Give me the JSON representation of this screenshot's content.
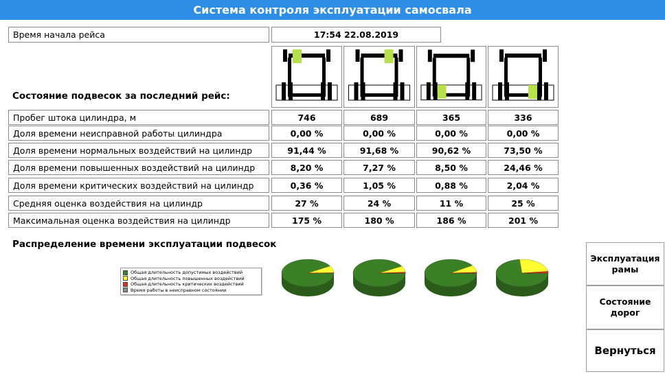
{
  "header": {
    "title": "Система контроля эксплуатации самосвала"
  },
  "trip_start": {
    "label": "Время начала рейса",
    "value": "17:54 22.08.2019"
  },
  "suspension_section_title": "Состояние подвесок за последний рейс:",
  "suspension_highlight_color": "#b8e04a",
  "suspensions": [
    {
      "position": "front-left"
    },
    {
      "position": "front-right"
    },
    {
      "position": "rear-left"
    },
    {
      "position": "rear-right"
    }
  ],
  "metrics": [
    {
      "label": "Пробег штока цилиндра, м",
      "values": [
        "746",
        "689",
        "365",
        "336"
      ]
    },
    {
      "label": "Доля времени неисправной работы цилиндра",
      "values": [
        "0,00 %",
        "0,00 %",
        "0,00 %",
        "0,00 %"
      ]
    },
    {
      "label": "Доля времени нормальных воздействий на цилиндр",
      "values": [
        "91,44 %",
        "91,68 %",
        "90,62 %",
        "73,50 %"
      ]
    },
    {
      "label": "Доля времени повышенных воздействий на цилиндр",
      "values": [
        "8,20 %",
        "7,27 %",
        "8,50 %",
        "24,46 %"
      ]
    },
    {
      "label": "Доля времени критических воздействий на цилиндр",
      "values": [
        "0,36 %",
        "1,05 %",
        "0,88 %",
        "2,04 %"
      ]
    },
    {
      "label": "Средняя оценка воздействия на цилиндр",
      "values": [
        "27 %",
        "24 %",
        "11 %",
        "25 %"
      ]
    },
    {
      "label": "Максимальная оценка воздействия на цилиндр",
      "values": [
        "175 %",
        "180 %",
        "186 %",
        "201 %"
      ]
    }
  ],
  "distribution_title": "Распределение времени эксплуатации подвесок",
  "chart_data": {
    "type": "pie",
    "legend_position": "left",
    "legend": [
      {
        "name": "Общая длительность допустимых воздействий",
        "color": "#3b7f26"
      },
      {
        "name": "Общая длительность повышенных воздействий",
        "color": "#ffff33"
      },
      {
        "name": "Общая длительность критических воздействий",
        "color": "#e03020"
      },
      {
        "name": "Время работы в неисправном состоянии",
        "color": "#8c8c8c"
      }
    ],
    "pies": [
      {
        "values": [
          91.44,
          8.2,
          0.36,
          0.0
        ]
      },
      {
        "values": [
          91.68,
          7.27,
          1.05,
          0.0
        ]
      },
      {
        "values": [
          90.62,
          8.5,
          0.88,
          0.0
        ]
      },
      {
        "values": [
          73.5,
          24.46,
          2.04,
          0.0
        ]
      }
    ]
  },
  "buttons": {
    "frame_line1": "Эксплуатация",
    "frame_line2": "рамы",
    "roads_line1": "Состояние",
    "roads_line2": "дорог",
    "back": "Вернуться"
  }
}
